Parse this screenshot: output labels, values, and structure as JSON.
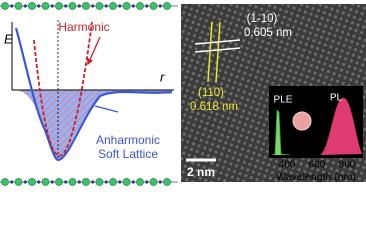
{
  "left_panel": {
    "energy_axis": "E",
    "distance_axis": "r",
    "harmonic_label": "Harmonic",
    "anharmonic_label": [
      "Anharmonic",
      "Soft Lattice"
    ]
  },
  "right_panel": {
    "plane_1": {
      "index": "(1-10)",
      "spacing": "0.605 nm"
    },
    "plane_2": {
      "index": "(110)",
      "spacing": "0.618 nm"
    },
    "scale_bar": "2 nm",
    "inset": {
      "ple_label": "PLE",
      "pl_label": "PL",
      "ticks": [
        "400",
        "600",
        "800"
      ],
      "axis_label": "Wavelength (nm)"
    }
  }
}
